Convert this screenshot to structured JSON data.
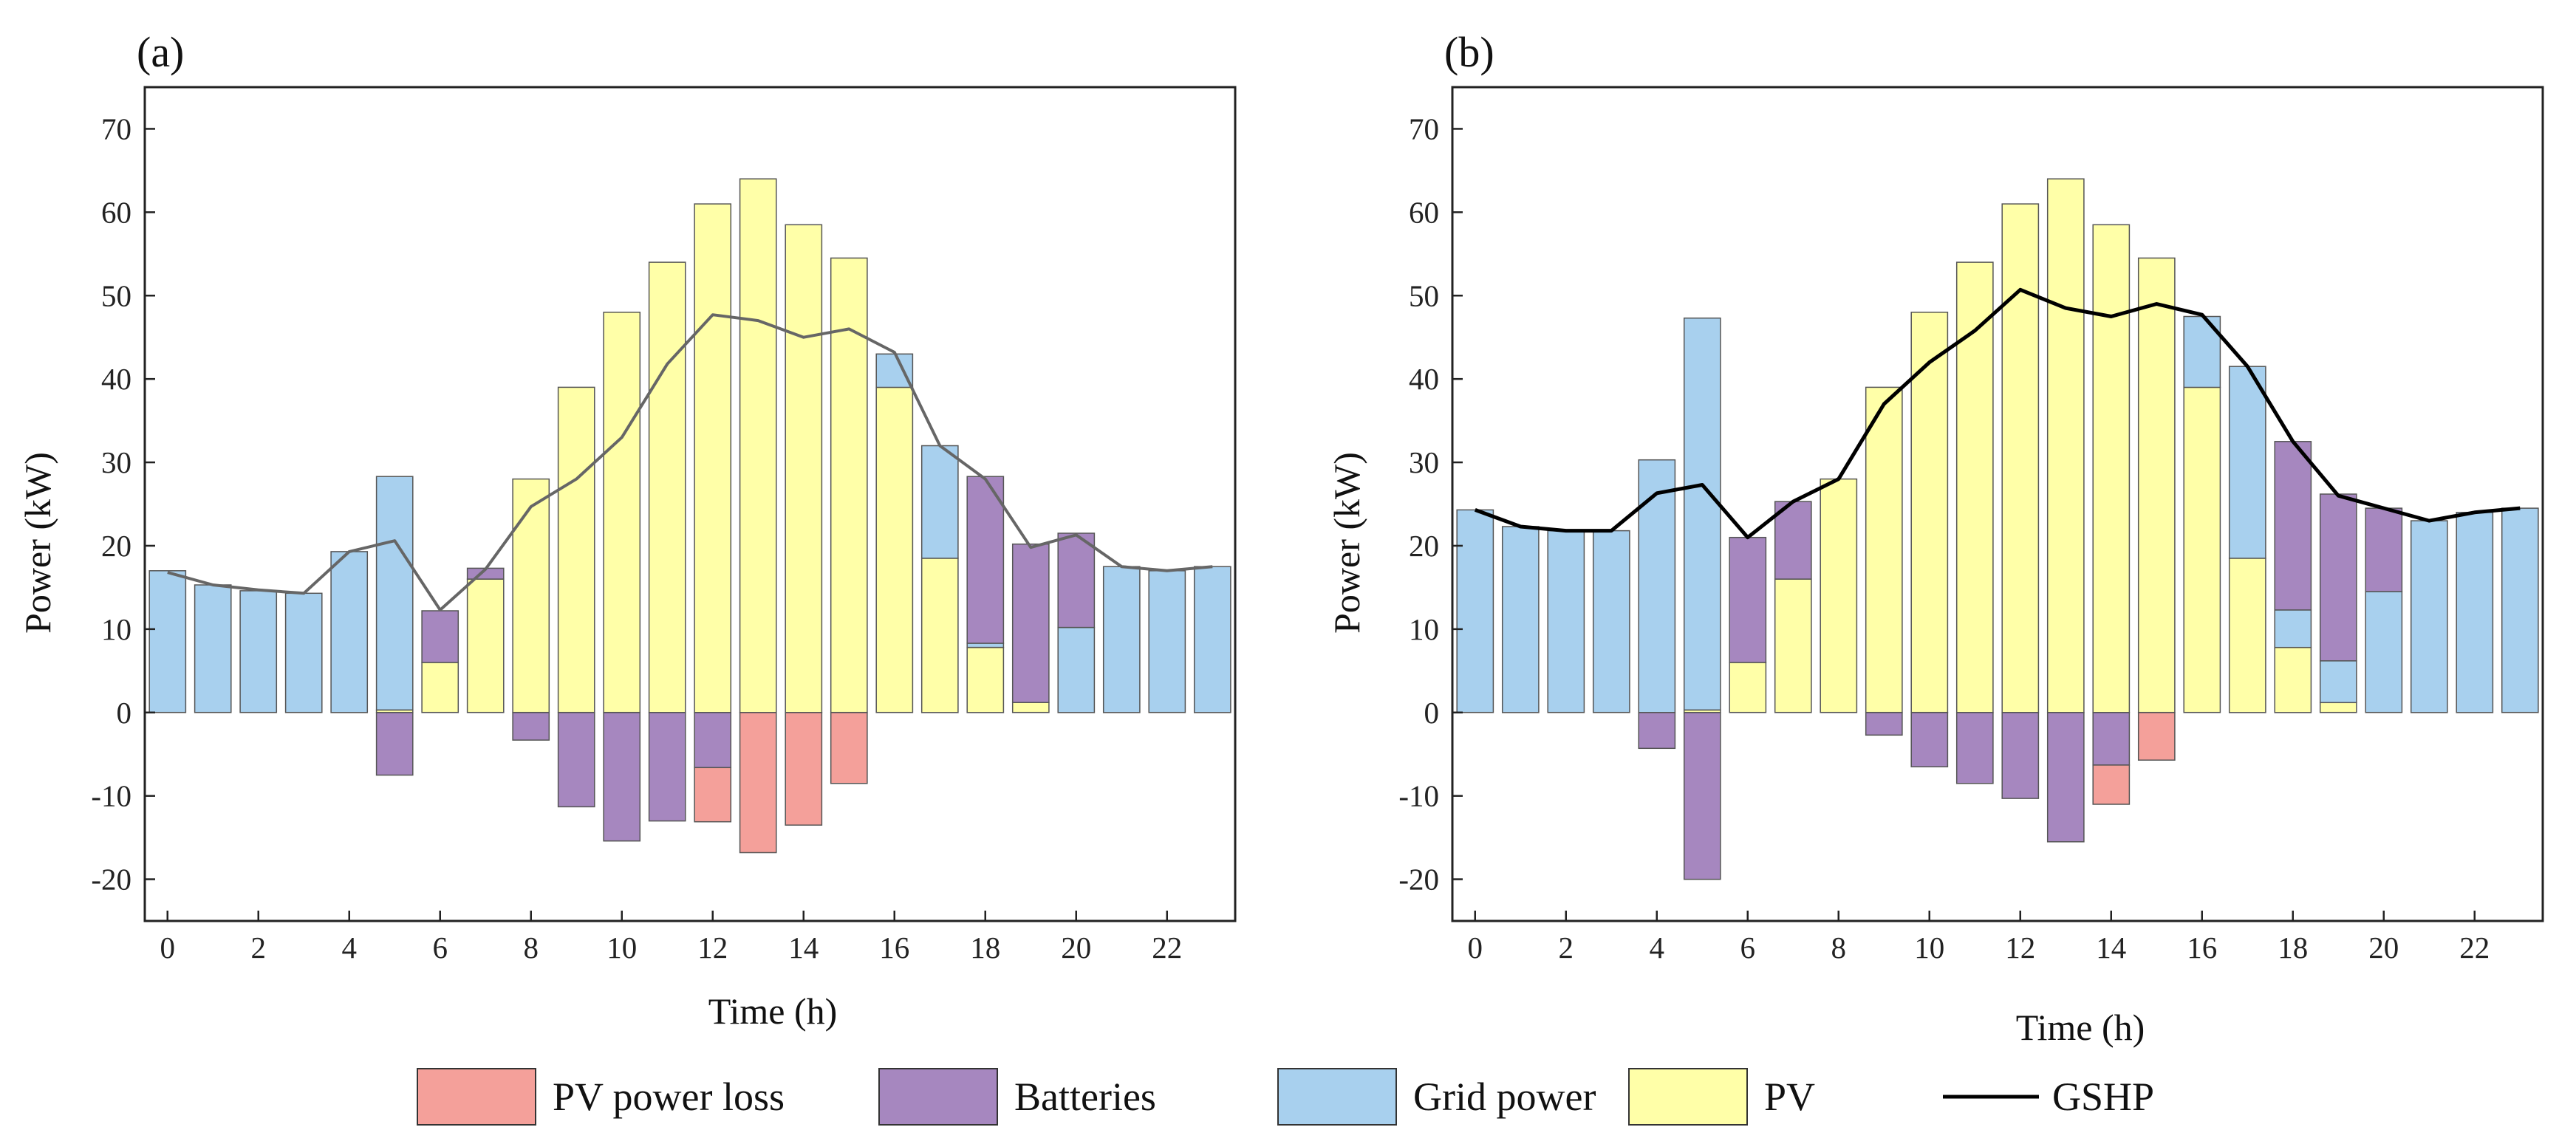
{
  "colors": {
    "pv_loss": "#F4A09A",
    "batteries": "#A687BF",
    "grid": "#A8D0EE",
    "pv": "#FFFFA8",
    "gshp_a": "#666666",
    "gshp_b": "#000000",
    "bar_stroke": "#555555"
  },
  "legend": [
    {
      "key": "pv_loss",
      "label": "PV power loss",
      "kind": "box"
    },
    {
      "key": "batteries",
      "label": "Batteries",
      "kind": "box"
    },
    {
      "key": "grid",
      "label": "Grid power",
      "kind": "box"
    },
    {
      "key": "pv",
      "label": "PV",
      "kind": "box"
    },
    {
      "key": "gshp_b",
      "label": "GSHP",
      "kind": "line"
    }
  ],
  "chart_data": [
    {
      "type": "bar",
      "panel_label": "(a)",
      "xlabel": "Time (h)",
      "ylabel": "Power (kW)",
      "xlim": [
        -0.5,
        23.5
      ],
      "ylim": [
        -25,
        75
      ],
      "xticks": [
        0,
        2,
        4,
        6,
        8,
        10,
        12,
        14,
        16,
        18,
        20,
        22
      ],
      "yticks": [
        -20,
        -10,
        0,
        10,
        20,
        30,
        40,
        50,
        60,
        70
      ],
      "x": [
        0,
        1,
        2,
        3,
        4,
        5,
        6,
        7,
        8,
        9,
        10,
        11,
        12,
        13,
        14,
        15,
        16,
        17,
        18,
        19,
        20,
        21,
        22,
        23
      ],
      "series": [
        {
          "name": "PV",
          "key": "pv",
          "values": [
            0,
            0,
            0,
            0,
            0,
            0.3,
            6,
            16,
            28,
            39,
            48,
            54,
            61,
            64,
            58.5,
            54.5,
            39,
            18.5,
            7.8,
            1.2,
            0,
            0,
            0,
            0
          ]
        },
        {
          "name": "Grid power",
          "key": "grid",
          "values": [
            17,
            15.3,
            14.6,
            14.3,
            19.3,
            28,
            0,
            0,
            0,
            0,
            0,
            0,
            0,
            0,
            0,
            0,
            4,
            13.5,
            0.5,
            0,
            10.2,
            17.5,
            17,
            17.5
          ]
        },
        {
          "name": "Batteries",
          "key": "batteries",
          "values": [
            0,
            0,
            0,
            0,
            0,
            -7.5,
            6.2,
            1.3,
            -3.3,
            -11.3,
            -15.4,
            -13,
            -6.6,
            0,
            0,
            0,
            0,
            0,
            20,
            19,
            11.3,
            0,
            0,
            0
          ]
        },
        {
          "name": "PV power loss",
          "key": "pv_loss",
          "values": [
            0,
            0,
            0,
            0,
            0,
            0,
            0,
            0,
            0,
            0,
            0,
            0,
            -6.5,
            -16.8,
            -13.5,
            -8.5,
            0,
            0,
            0,
            0,
            0,
            0,
            0,
            0
          ]
        },
        {
          "name": "GSHP",
          "key": "gshp_a",
          "type": "line",
          "values": [
            16.8,
            15.3,
            14.7,
            14.3,
            19.3,
            20.6,
            12.3,
            17.2,
            24.7,
            28,
            33,
            41.8,
            47.7,
            47,
            45,
            46,
            43.2,
            32,
            28,
            19.8,
            21.3,
            17.5,
            17,
            17.5
          ]
        }
      ]
    },
    {
      "type": "bar",
      "panel_label": "(b)",
      "xlabel": "Time (h)",
      "ylabel": "Power (kW)",
      "xlim": [
        -0.5,
        23.5
      ],
      "ylim": [
        -25,
        75
      ],
      "xticks": [
        0,
        2,
        4,
        6,
        8,
        10,
        12,
        14,
        16,
        18,
        20,
        22
      ],
      "yticks": [
        -20,
        -10,
        0,
        10,
        20,
        30,
        40,
        50,
        60,
        70
      ],
      "x": [
        0,
        1,
        2,
        3,
        4,
        5,
        6,
        7,
        8,
        9,
        10,
        11,
        12,
        13,
        14,
        15,
        16,
        17,
        18,
        19,
        20,
        21,
        22,
        23
      ],
      "series": [
        {
          "name": "PV",
          "key": "pv",
          "values": [
            0,
            0,
            0,
            0,
            0,
            0.3,
            6,
            16,
            28,
            39,
            48,
            54,
            61,
            64,
            58.5,
            54.5,
            39,
            18.5,
            7.8,
            1.2,
            0,
            0,
            0,
            0
          ]
        },
        {
          "name": "Grid power",
          "key": "grid",
          "values": [
            24.3,
            22.3,
            21.8,
            21.8,
            30.3,
            47,
            0,
            0,
            0,
            0,
            0,
            0,
            0,
            0,
            0,
            0,
            8.5,
            23,
            4.5,
            5,
            14.5,
            23,
            24,
            24.5
          ]
        },
        {
          "name": "Batteries",
          "key": "batteries",
          "values": [
            0,
            0,
            0,
            0,
            -4.3,
            -20,
            15,
            9.3,
            0,
            -2.7,
            -6.5,
            -8.5,
            -10.3,
            -15.5,
            -6.3,
            0,
            0,
            0,
            20.2,
            20,
            10,
            0,
            0,
            0
          ]
        },
        {
          "name": "PV power loss",
          "key": "pv_loss",
          "values": [
            0,
            0,
            0,
            0,
            0,
            0,
            0,
            0,
            0,
            0,
            0,
            0,
            0,
            0,
            -4.7,
            -5.7,
            0,
            0,
            0,
            0,
            0,
            0,
            0,
            0
          ]
        },
        {
          "name": "GSHP",
          "key": "gshp_b",
          "type": "line",
          "values": [
            24.3,
            22.3,
            21.8,
            21.8,
            26.3,
            27.3,
            21,
            25.3,
            28,
            37,
            42,
            45.8,
            50.7,
            48.5,
            47.5,
            49,
            47.7,
            41.5,
            32.5,
            26,
            24.5,
            23,
            24,
            24.5
          ]
        }
      ]
    }
  ]
}
